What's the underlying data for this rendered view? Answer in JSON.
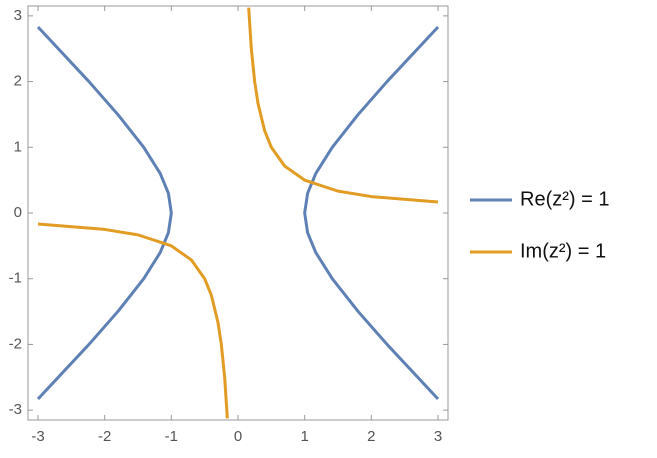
{
  "chart_data": {
    "type": "line",
    "xlim": [
      -3.15,
      3.15
    ],
    "ylim": [
      -3.15,
      3.15
    ],
    "xticks": [
      -3,
      -2,
      -1,
      0,
      1,
      2,
      3
    ],
    "yticks": [
      -3,
      -2,
      -1,
      0,
      1,
      2,
      3
    ],
    "legend": "right",
    "series": [
      {
        "name": "Re(z²) = 1",
        "color": "#5e81b5",
        "x": [
          3.0,
          2.236,
          1.803,
          1.414,
          1.166,
          1.044,
          1.0,
          1.044,
          1.166,
          1.414,
          1.803,
          2.236,
          3.0,
          null,
          -3.0,
          -2.236,
          -1.803,
          -1.414,
          -1.166,
          -1.044,
          -1.0,
          -1.044,
          -1.166,
          -1.414,
          -1.803,
          -2.236,
          -3.0
        ],
        "values": [
          -2.83,
          -2,
          -1.5,
          -1,
          -0.6,
          -0.3,
          0,
          0.3,
          0.6,
          1,
          1.5,
          2,
          2.83,
          null,
          -2.83,
          -2,
          -1.5,
          -1,
          -0.6,
          -0.3,
          0,
          0.3,
          0.6,
          1,
          1.5,
          2,
          2.83
        ]
      },
      {
        "name": "Im(z²) = 1",
        "color": "#e19c24",
        "x": [
          0.16,
          0.2,
          0.25,
          0.3,
          0.4,
          0.5,
          0.7,
          1,
          1.5,
          2,
          3,
          null,
          -0.16,
          -0.2,
          -0.25,
          -0.3,
          -0.4,
          -0.5,
          -0.7,
          -1,
          -1.5,
          -2,
          -3
        ],
        "values": [
          3.125,
          2.5,
          2,
          1.667,
          1.25,
          1,
          0.714,
          0.5,
          0.333,
          0.25,
          0.167,
          null,
          -3.125,
          -2.5,
          -2,
          -1.667,
          -1.25,
          -1,
          -0.714,
          -0.5,
          -0.333,
          -0.25,
          -0.167
        ]
      }
    ]
  }
}
